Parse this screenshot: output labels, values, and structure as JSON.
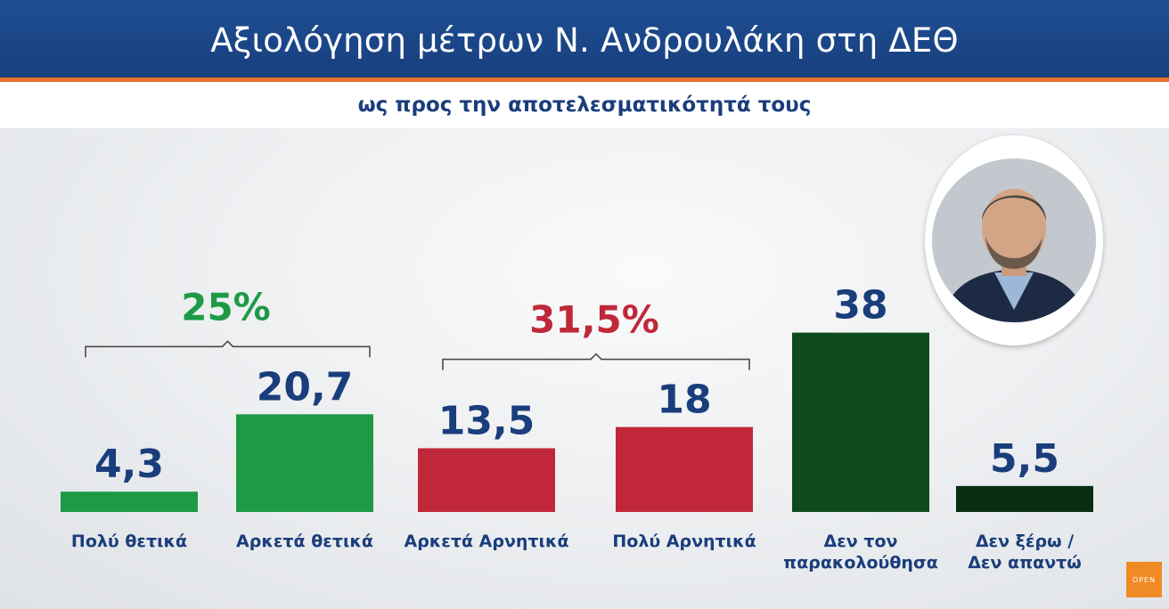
{
  "header": {
    "title": "Αξιολόγηση μέτρων Ν. Ανδρουλάκη στη ΔΕΘ",
    "subtitle": "ως προς την αποτελεσματικότητά τους"
  },
  "chart_data": {
    "type": "bar",
    "title": "Αξιολόγηση μέτρων Ν. Ανδρουλάκη στη ΔΕΘ",
    "subtitle": "ως προς την αποτελεσματικότητά τους",
    "categories": [
      [
        "Πολύ θετικά"
      ],
      [
        "Αρκετά θετικά"
      ],
      [
        "Αρκετά Αρνητικά"
      ],
      [
        "Πολύ Αρνητικά"
      ],
      [
        "Δεν τον",
        "παρακολούθησα"
      ],
      [
        "Δεν ξέρω /",
        "Δεν απαντώ"
      ]
    ],
    "values": [
      4.3,
      20.7,
      13.5,
      18,
      38,
      5.5
    ],
    "value_labels": [
      "4,3",
      "20,7",
      "13,5",
      "18",
      "38",
      "5,5"
    ],
    "bar_colors": [
      "#1e9a45",
      "#1e9a45",
      "#c0283a",
      "#c0283a",
      "#0d4a1c",
      "#082d10"
    ],
    "groups": [
      {
        "label": "25%",
        "color": "#1e9a45",
        "from": 0,
        "to": 1
      },
      {
        "label": "31,5%",
        "color": "#c0283a",
        "from": 2,
        "to": 3
      }
    ],
    "xlabel": "",
    "ylabel": "",
    "ylim": [
      0,
      40
    ],
    "grid": false,
    "legend": "none"
  },
  "logo": {
    "text": "OPEN"
  },
  "colors": {
    "header": "#1f4f93",
    "accent": "#e8702a",
    "text": "#1a3d7c"
  }
}
